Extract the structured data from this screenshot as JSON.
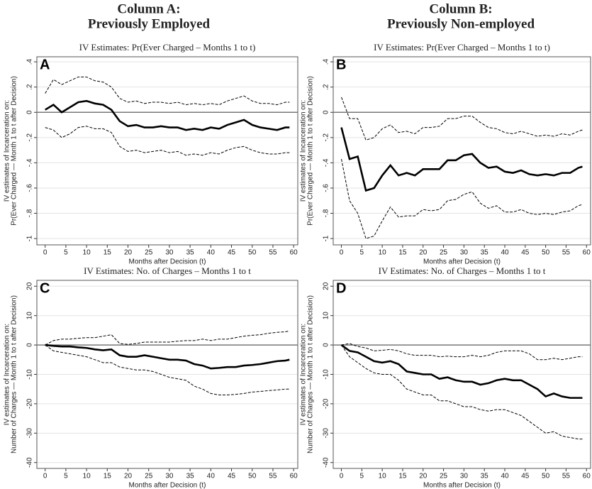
{
  "columns": [
    {
      "title": "Column A:",
      "subtitle": "Previously Employed"
    },
    {
      "title": "Column B:",
      "subtitle": "Previously Non-employed"
    }
  ],
  "chart_data": [
    {
      "type": "line",
      "title": "IV Estimates: Pr(Ever Charged – Months 1 to t)",
      "annotation": "A",
      "ylabel": [
        "IV estimates of Incarceration on:",
        "Pr(Ever Charged — Month 1 to t after Decision)"
      ],
      "xlabel": "Months after Decision (t)",
      "x": [
        0,
        2,
        4,
        6,
        8,
        10,
        12,
        14,
        16,
        18,
        20,
        22,
        24,
        26,
        28,
        30,
        32,
        34,
        36,
        38,
        40,
        42,
        44,
        46,
        48,
        50,
        52,
        54,
        56,
        58,
        59
      ],
      "xlim": [
        -2,
        61
      ],
      "xticks": [
        0,
        5,
        10,
        15,
        20,
        25,
        30,
        35,
        40,
        45,
        50,
        55,
        60
      ],
      "ylim": [
        -1.05,
        0.44
      ],
      "yticks": [
        -1,
        {
          "value": -0.8,
          "label": "-.8"
        },
        {
          "value": -0.6,
          "label": "-.6"
        },
        {
          "value": -0.4,
          "label": "-.4"
        },
        {
          "value": -0.2,
          "label": "-.2"
        },
        0,
        {
          "value": 0.2,
          "label": ".2"
        },
        {
          "value": 0.4,
          "label": ".4"
        }
      ],
      "grid": true,
      "reference_line": 0,
      "series": [
        {
          "color": "#000000",
          "style": "solid",
          "values": [
            0.02,
            0.06,
            0.0,
            0.04,
            0.08,
            0.09,
            0.07,
            0.06,
            0.02,
            -0.07,
            -0.11,
            -0.1,
            -0.12,
            -0.12,
            -0.11,
            -0.12,
            -0.12,
            -0.14,
            -0.13,
            -0.14,
            -0.12,
            -0.13,
            -0.1,
            -0.08,
            -0.06,
            -0.1,
            -0.12,
            -0.13,
            -0.14,
            -0.12,
            -0.12
          ]
        },
        {
          "color": "#000000",
          "style": "dashed",
          "values": [
            0.15,
            0.26,
            0.22,
            0.25,
            0.28,
            0.28,
            0.25,
            0.24,
            0.2,
            0.11,
            0.08,
            0.09,
            0.07,
            0.08,
            0.08,
            0.07,
            0.08,
            0.06,
            0.07,
            0.06,
            0.07,
            0.06,
            0.09,
            0.11,
            0.13,
            0.09,
            0.07,
            0.07,
            0.06,
            0.08,
            0.08
          ]
        },
        {
          "color": "#000000",
          "style": "dashed",
          "values": [
            -0.12,
            -0.14,
            -0.2,
            -0.17,
            -0.12,
            -0.11,
            -0.13,
            -0.13,
            -0.16,
            -0.27,
            -0.31,
            -0.3,
            -0.32,
            -0.31,
            -0.3,
            -0.32,
            -0.31,
            -0.34,
            -0.33,
            -0.34,
            -0.32,
            -0.33,
            -0.3,
            -0.28,
            -0.27,
            -0.3,
            -0.32,
            -0.33,
            -0.33,
            -0.32,
            -0.32
          ]
        }
      ]
    },
    {
      "type": "line",
      "title": "IV Estimates: Pr(Ever Charged – Months 1 to t)",
      "annotation": "B",
      "ylabel": [
        "IV estimates of Incarceration on:",
        "Pr(Ever Charged — Month 1 to t after Decision)"
      ],
      "xlabel": "Months after Decision (t)",
      "x": [
        0,
        2,
        4,
        6,
        8,
        10,
        12,
        14,
        16,
        18,
        20,
        22,
        24,
        26,
        28,
        30,
        32,
        34,
        36,
        38,
        40,
        42,
        44,
        46,
        48,
        50,
        52,
        54,
        56,
        58,
        59
      ],
      "xlim": [
        -2,
        61
      ],
      "xticks": [
        0,
        5,
        10,
        15,
        20,
        25,
        30,
        35,
        40,
        45,
        50,
        55,
        60
      ],
      "ylim": [
        -1.05,
        0.44
      ],
      "yticks": [
        -1,
        {
          "value": -0.8,
          "label": "-.8"
        },
        {
          "value": -0.6,
          "label": "-.6"
        },
        {
          "value": -0.4,
          "label": "-.4"
        },
        {
          "value": -0.2,
          "label": "-.2"
        },
        0,
        {
          "value": 0.2,
          "label": ".2"
        },
        {
          "value": 0.4,
          "label": ".4"
        }
      ],
      "grid": true,
      "reference_line": 0,
      "series": [
        {
          "color": "#000000",
          "style": "solid",
          "values": [
            -0.12,
            -0.37,
            -0.35,
            -0.62,
            -0.6,
            -0.5,
            -0.42,
            -0.5,
            -0.48,
            -0.5,
            -0.45,
            -0.45,
            -0.45,
            -0.38,
            -0.38,
            -0.34,
            -0.33,
            -0.4,
            -0.44,
            -0.43,
            -0.47,
            -0.48,
            -0.46,
            -0.49,
            -0.5,
            -0.49,
            -0.5,
            -0.48,
            -0.48,
            -0.44,
            -0.43
          ]
        },
        {
          "color": "#000000",
          "style": "dashed",
          "values": [
            0.12,
            -0.05,
            -0.05,
            -0.22,
            -0.2,
            -0.13,
            -0.1,
            -0.16,
            -0.15,
            -0.17,
            -0.12,
            -0.12,
            -0.11,
            -0.05,
            -0.05,
            -0.03,
            -0.03,
            -0.08,
            -0.12,
            -0.13,
            -0.16,
            -0.17,
            -0.15,
            -0.17,
            -0.19,
            -0.18,
            -0.19,
            -0.17,
            -0.18,
            -0.15,
            -0.14
          ]
        },
        {
          "color": "#000000",
          "style": "dashed",
          "values": [
            -0.37,
            -0.7,
            -0.8,
            -1.0,
            -0.98,
            -0.86,
            -0.75,
            -0.83,
            -0.82,
            -0.82,
            -0.77,
            -0.78,
            -0.77,
            -0.7,
            -0.69,
            -0.65,
            -0.63,
            -0.72,
            -0.76,
            -0.74,
            -0.79,
            -0.79,
            -0.77,
            -0.8,
            -0.81,
            -0.8,
            -0.81,
            -0.79,
            -0.78,
            -0.74,
            -0.73
          ]
        }
      ]
    },
    {
      "type": "line",
      "title": "IV Estimates: No. of Charges – Months 1 to t",
      "annotation": "C",
      "ylabel": [
        "IV estimates of Incarceration on:",
        "Number of Charges — Month 1 to t after Decision)"
      ],
      "xlabel": "Months after Decision (t)",
      "x": [
        0,
        2,
        4,
        6,
        8,
        10,
        12,
        14,
        16,
        18,
        20,
        22,
        24,
        26,
        28,
        30,
        32,
        34,
        36,
        38,
        40,
        42,
        44,
        46,
        48,
        50,
        52,
        54,
        56,
        58,
        59
      ],
      "xlim": [
        -2,
        61
      ],
      "xticks": [
        0,
        5,
        10,
        15,
        20,
        25,
        30,
        35,
        40,
        45,
        50,
        55,
        60
      ],
      "ylim": [
        -42,
        22
      ],
      "yticks": [
        -40,
        -30,
        -20,
        -10,
        0,
        10,
        20
      ],
      "grid": true,
      "reference_line": 0,
      "series": [
        {
          "color": "#000000",
          "style": "solid",
          "values": [
            0,
            -0.3,
            -0.5,
            -0.5,
            -0.8,
            -1,
            -1.5,
            -1.8,
            -1.5,
            -3.5,
            -4,
            -4,
            -3.5,
            -4,
            -4.5,
            -5,
            -5,
            -5.3,
            -6.5,
            -7,
            -8,
            -7.8,
            -7.5,
            -7.5,
            -7,
            -6.8,
            -6.5,
            -6,
            -5.5,
            -5.3,
            -5
          ]
        },
        {
          "color": "#000000",
          "style": "dashed",
          "values": [
            0,
            1.5,
            2,
            2,
            2.3,
            2.5,
            2.5,
            3,
            3.5,
            0.5,
            0.2,
            0.5,
            1,
            1,
            1,
            1,
            1.3,
            1.5,
            1.5,
            2,
            1.5,
            2,
            2,
            2.5,
            3,
            3.3,
            3.5,
            4,
            4.3,
            4.5,
            4.8
          ]
        },
        {
          "color": "#000000",
          "style": "dashed",
          "values": [
            0,
            -2,
            -2.5,
            -3,
            -3.5,
            -4,
            -5,
            -6,
            -6,
            -7.5,
            -8,
            -8.5,
            -8.5,
            -9,
            -10,
            -11,
            -11.5,
            -12,
            -14,
            -15,
            -16.5,
            -17,
            -17,
            -16.8,
            -16.5,
            -16,
            -15.8,
            -15.5,
            -15.3,
            -15,
            -15
          ]
        }
      ]
    },
    {
      "type": "line",
      "title": "IV Estimates: No. of Charges – Months 1 to t",
      "annotation": "D",
      "ylabel": [
        "IV estimates of Incarceration on:",
        "Number of Charges — Month 1 to t after Decision)"
      ],
      "xlabel": "Months after Decision (t)",
      "x": [
        0,
        2,
        4,
        6,
        8,
        10,
        12,
        14,
        16,
        18,
        20,
        22,
        24,
        26,
        28,
        30,
        32,
        34,
        36,
        38,
        40,
        42,
        44,
        46,
        48,
        50,
        52,
        54,
        56,
        58,
        59
      ],
      "xlim": [
        -2,
        61
      ],
      "xticks": [
        0,
        5,
        10,
        15,
        20,
        25,
        30,
        35,
        40,
        45,
        50,
        55,
        60
      ],
      "ylim": [
        -42,
        22
      ],
      "yticks": [
        -40,
        -30,
        -20,
        -10,
        0,
        10,
        20
      ],
      "grid": true,
      "reference_line": 0,
      "series": [
        {
          "color": "#000000",
          "style": "solid",
          "values": [
            0,
            -2,
            -2.5,
            -4,
            -5.5,
            -6,
            -5.5,
            -6.5,
            -9,
            -9.5,
            -10,
            -10,
            -11.5,
            -11,
            -12,
            -12.5,
            -12.5,
            -13.5,
            -13,
            -12,
            -11.5,
            -12,
            -12,
            -13.5,
            -15,
            -17.5,
            -16.5,
            -17.5,
            -18,
            -18,
            -18
          ]
        },
        {
          "color": "#000000",
          "style": "dashed",
          "values": [
            0,
            0.5,
            -0.5,
            -1,
            -2,
            -1.8,
            -1.5,
            -2,
            -3,
            -3.5,
            -3.5,
            -3.5,
            -4,
            -3.8,
            -4,
            -4,
            -3.5,
            -4,
            -3.5,
            -2.5,
            -2,
            -2,
            -2,
            -3,
            -5,
            -5,
            -4.5,
            -5,
            -4.5,
            -4,
            -4
          ]
        },
        {
          "color": "#000000",
          "style": "dashed",
          "values": [
            0,
            -4,
            -6,
            -8,
            -9.5,
            -10,
            -10,
            -12,
            -15,
            -16,
            -17,
            -17,
            -19,
            -19,
            -20,
            -21,
            -21,
            -22,
            -22.5,
            -22,
            -22,
            -23,
            -24,
            -26,
            -28,
            -30,
            -29.5,
            -31,
            -31.5,
            -32,
            -32
          ]
        }
      ]
    }
  ]
}
